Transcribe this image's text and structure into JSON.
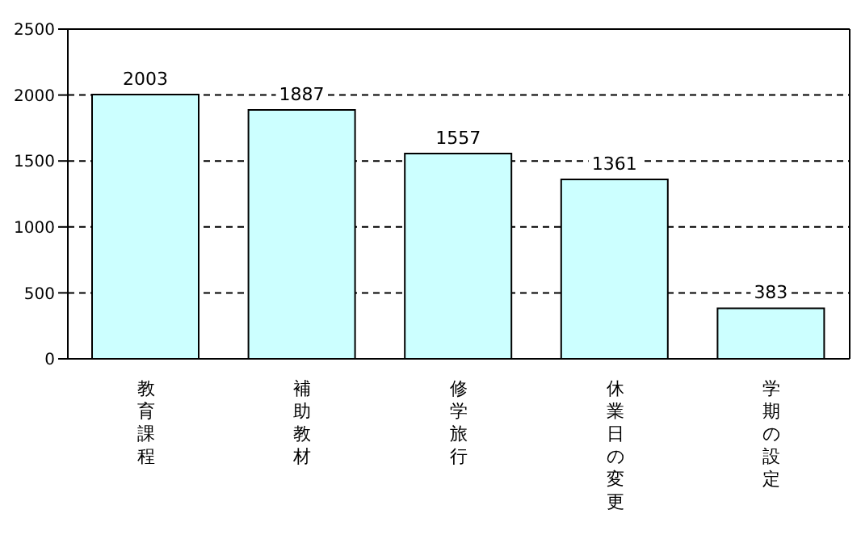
{
  "chart_data": {
    "type": "bar",
    "categories": [
      "教育課程",
      "補助教材",
      "修学旅行",
      "休業日の変更",
      "学期の設定"
    ],
    "values": [
      2003,
      1887,
      1557,
      1361,
      383
    ],
    "color": "#ccffff",
    "ylim": [
      0,
      2500
    ],
    "yticks": [
      0,
      500,
      1000,
      1500,
      2000,
      2500
    ],
    "grid": "y",
    "data_labels": true
  }
}
